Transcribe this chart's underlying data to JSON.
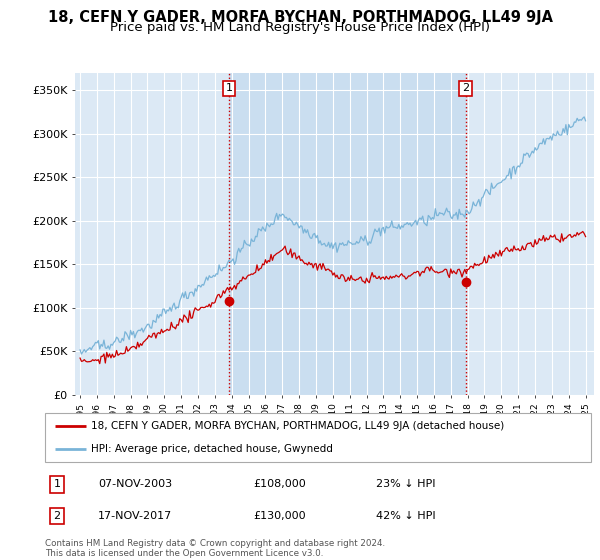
{
  "title": "18, CEFN Y GADER, MORFA BYCHAN, PORTHMADOG, LL49 9JA",
  "subtitle": "Price paid vs. HM Land Registry's House Price Index (HPI)",
  "ylim": [
    0,
    370000
  ],
  "yticks": [
    0,
    50000,
    100000,
    150000,
    200000,
    250000,
    300000,
    350000
  ],
  "ytick_labels": [
    "£0",
    "£50K",
    "£100K",
    "£150K",
    "£200K",
    "£250K",
    "£300K",
    "£350K"
  ],
  "sale1_date_num": 2003.85,
  "sale1_price": 108000,
  "sale1_label": "1",
  "sale2_date_num": 2017.88,
  "sale2_price": 130000,
  "sale2_label": "2",
  "hpi_color": "#7ab4d8",
  "price_color": "#cc0000",
  "background_color": "#dce9f5",
  "shade_color": "#c8ddf0",
  "legend_entry1": "18, CEFN Y GADER, MORFA BYCHAN, PORTHMADOG, LL49 9JA (detached house)",
  "legend_entry2": "HPI: Average price, detached house, Gwynedd",
  "table_row1": [
    "1",
    "07-NOV-2003",
    "£108,000",
    "23% ↓ HPI"
  ],
  "table_row2": [
    "2",
    "17-NOV-2017",
    "£130,000",
    "42% ↓ HPI"
  ],
  "footnote": "Contains HM Land Registry data © Crown copyright and database right 2024.\nThis data is licensed under the Open Government Licence v3.0.",
  "title_fontsize": 10.5,
  "subtitle_fontsize": 9.5
}
